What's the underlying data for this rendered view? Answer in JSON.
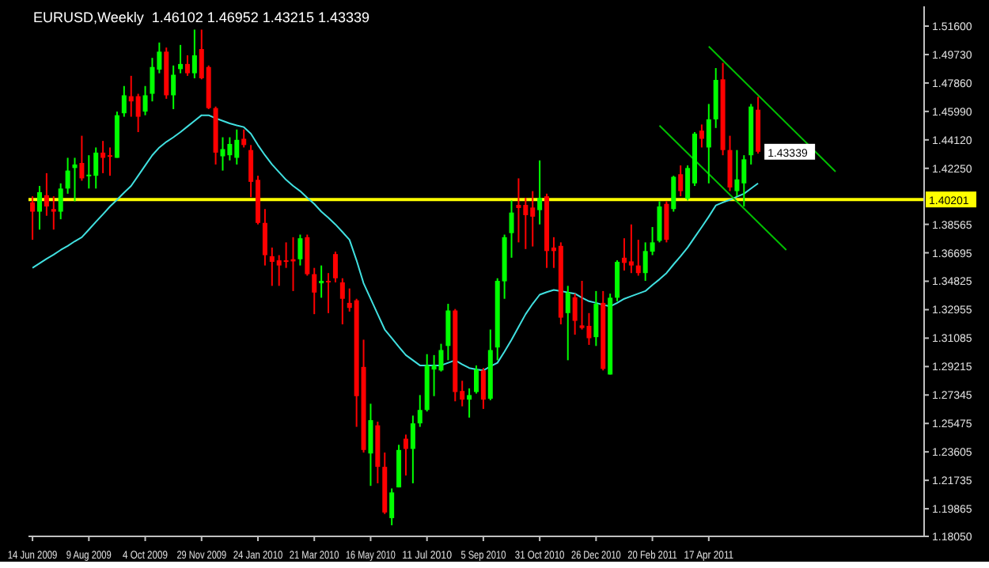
{
  "chart_data": {
    "type": "candlestick",
    "title": "EURUSD,Weekly  1.46102 1.46952 1.43215 1.43339",
    "x": [
      "2009-06-14",
      "2009-06-21",
      "2009-06-28",
      "2009-07-05",
      "2009-07-12",
      "2009-07-19",
      "2009-07-26",
      "2009-08-02",
      "2009-08-09",
      "2009-08-16",
      "2009-08-23",
      "2009-08-30",
      "2009-09-06",
      "2009-09-13",
      "2009-09-20",
      "2009-09-27",
      "2009-10-04",
      "2009-10-11",
      "2009-10-18",
      "2009-10-25",
      "2009-11-01",
      "2009-11-08",
      "2009-11-15",
      "2009-11-22",
      "2009-11-29",
      "2009-12-06",
      "2009-12-13",
      "2009-12-20",
      "2009-12-27",
      "2010-01-03",
      "2010-01-10",
      "2010-01-17",
      "2010-01-24",
      "2010-01-31",
      "2010-02-07",
      "2010-02-14",
      "2010-02-21",
      "2010-02-28",
      "2010-03-07",
      "2010-03-14",
      "2010-03-21",
      "2010-03-28",
      "2010-04-04",
      "2010-04-11",
      "2010-04-18",
      "2010-04-25",
      "2010-05-02",
      "2010-05-09",
      "2010-05-16",
      "2010-05-23",
      "2010-05-30",
      "2010-06-06",
      "2010-06-13",
      "2010-06-20",
      "2010-06-27",
      "2010-07-04",
      "2010-07-11",
      "2010-07-18",
      "2010-07-25",
      "2010-08-01",
      "2010-08-08",
      "2010-08-15",
      "2010-08-22",
      "2010-08-29",
      "2010-09-05",
      "2010-09-12",
      "2010-09-19",
      "2010-09-26",
      "2010-10-03",
      "2010-10-10",
      "2010-10-17",
      "2010-10-24",
      "2010-10-31",
      "2010-11-07",
      "2010-11-14",
      "2010-11-21",
      "2010-11-28",
      "2010-12-05",
      "2010-12-12",
      "2010-12-19",
      "2010-12-26",
      "2011-01-02",
      "2011-01-09",
      "2011-01-16",
      "2011-01-23",
      "2011-01-30",
      "2011-02-06",
      "2011-02-13",
      "2011-02-20",
      "2011-02-27",
      "2011-03-06",
      "2011-03-13",
      "2011-03-20",
      "2011-03-27",
      "2011-04-03",
      "2011-04-10",
      "2011-04-17",
      "2011-04-24",
      "2011-05-01",
      "2011-05-08",
      "2011-05-15",
      "2011-05-22",
      "2011-05-29",
      "2011-06-05"
    ],
    "series": [
      {
        "type": "candlestick",
        "ohlc": [
          [
            1.4001,
            1.4041,
            1.3755,
            1.394
          ],
          [
            1.394,
            1.4109,
            1.3822,
            1.4068
          ],
          [
            1.4048,
            1.4193,
            1.3913,
            1.3974
          ],
          [
            1.3957,
            1.4041,
            1.3822,
            1.394
          ],
          [
            1.394,
            1.4126,
            1.389,
            1.4092
          ],
          [
            1.4092,
            1.4294,
            1.4058,
            1.421
          ],
          [
            1.4227,
            1.4294,
            1.4008,
            1.425
          ],
          [
            1.426,
            1.4439,
            1.4143,
            1.4159
          ],
          [
            1.4176,
            1.4311,
            1.4092,
            1.4183
          ],
          [
            1.4176,
            1.4362,
            1.4092,
            1.4328
          ],
          [
            1.4328,
            1.4405,
            1.4193,
            1.4294
          ],
          [
            1.4311,
            1.4362,
            1.4176,
            1.4301
          ],
          [
            1.4294,
            1.4598,
            1.4294,
            1.4574
          ],
          [
            1.4587,
            1.4766,
            1.4564,
            1.4705
          ],
          [
            1.4699,
            1.4833,
            1.4564,
            1.4665
          ],
          [
            1.4699,
            1.4715,
            1.4463,
            1.4564
          ],
          [
            1.4598,
            1.4766,
            1.4574,
            1.4705
          ],
          [
            1.4715,
            1.4951,
            1.4665,
            1.4891
          ],
          [
            1.4874,
            1.5052,
            1.485,
            1.4992
          ],
          [
            1.4992,
            1.5019,
            1.4682,
            1.4705
          ],
          [
            1.4705,
            1.4901,
            1.4614,
            1.484
          ],
          [
            1.4877,
            1.5036,
            1.485,
            1.4911
          ],
          [
            1.4911,
            1.4968,
            1.4833,
            1.485
          ],
          [
            1.485,
            1.5137,
            1.4817,
            1.4968
          ],
          [
            1.5009,
            1.5137,
            1.481,
            1.4817
          ],
          [
            1.4891,
            1.4901,
            1.4614,
            1.4621
          ],
          [
            1.4621,
            1.4631,
            1.425,
            1.4328
          ],
          [
            1.4304,
            1.4429,
            1.421,
            1.4351
          ],
          [
            1.4311,
            1.4429,
            1.4277,
            1.4385
          ],
          [
            1.4294,
            1.448,
            1.425,
            1.4412
          ],
          [
            1.4419,
            1.448,
            1.4362,
            1.4378
          ],
          [
            1.4345,
            1.4378,
            1.4035,
            1.4136
          ],
          [
            1.4149,
            1.4176,
            1.3856,
            1.3866
          ],
          [
            1.3866,
            1.3957,
            1.3586,
            1.3654
          ],
          [
            1.3647,
            1.3704,
            1.3452,
            1.361
          ],
          [
            1.362,
            1.3654,
            1.3452,
            1.3586
          ],
          [
            1.362,
            1.3738,
            1.357,
            1.3613
          ],
          [
            1.3627,
            1.3772,
            1.3418,
            1.3613
          ],
          [
            1.3627,
            1.3789,
            1.3586,
            1.3765
          ],
          [
            1.3772,
            1.3789,
            1.3519,
            1.3529
          ],
          [
            1.3529,
            1.357,
            1.3266,
            1.3408
          ],
          [
            1.3469,
            1.3586,
            1.3374,
            1.3485
          ],
          [
            1.3485,
            1.3536,
            1.3273,
            1.3475
          ],
          [
            1.3661,
            1.3677,
            1.3475,
            1.3502
          ],
          [
            1.3475,
            1.3502,
            1.3199,
            1.3367
          ],
          [
            1.334,
            1.3435,
            1.3283,
            1.3307
          ],
          [
            1.3357,
            1.3367,
            1.2525,
            1.2727
          ],
          [
            1.2919,
            1.3098,
            1.2356,
            1.2373
          ],
          [
            1.235,
            1.2677,
            1.2137,
            1.2569
          ],
          [
            1.2535,
            1.2559,
            1.2154,
            1.2262
          ],
          [
            1.2262,
            1.2356,
            1.1952,
            1.1962
          ],
          [
            1.1925,
            1.212,
            1.1878,
            1.2094
          ],
          [
            1.2127,
            1.2407,
            1.2127,
            1.2373
          ],
          [
            1.2447,
            1.2474,
            1.2205,
            1.238
          ],
          [
            1.238,
            1.2599,
            1.2154,
            1.2548
          ],
          [
            1.2548,
            1.2734,
            1.2525,
            1.2636
          ],
          [
            1.2636,
            1.3003,
            1.2626,
            1.2929
          ],
          [
            1.2902,
            1.2997,
            1.2727,
            1.2929
          ],
          [
            1.2896,
            1.3071,
            1.2889,
            1.303
          ],
          [
            1.3057,
            1.3334,
            1.2963,
            1.329
          ],
          [
            1.329,
            1.33,
            1.2693,
            1.2754
          ],
          [
            1.2761,
            1.2828,
            1.266,
            1.2704
          ],
          [
            1.2704,
            1.2778,
            1.2586,
            1.2734
          ],
          [
            1.2754,
            1.2929,
            1.2744,
            1.2902
          ],
          [
            1.2896,
            1.2912,
            1.2643,
            1.2704
          ],
          [
            1.271,
            1.3165,
            1.27,
            1.303
          ],
          [
            1.3047,
            1.3502,
            1.2963,
            1.3485
          ],
          [
            1.3482,
            1.3789,
            1.3367,
            1.3772
          ],
          [
            1.3799,
            1.4014,
            1.3637,
            1.3934
          ],
          [
            1.3984,
            1.4159,
            1.3738,
            1.3964
          ],
          [
            1.3984,
            1.4031,
            1.3694,
            1.3917
          ],
          [
            1.3967,
            1.4075,
            1.3711,
            1.3907
          ],
          [
            1.395,
            1.4277,
            1.3856,
            1.4031
          ],
          [
            1.4041,
            1.4058,
            1.357,
            1.3681
          ],
          [
            1.3704,
            1.3772,
            1.357,
            1.3681
          ],
          [
            1.3715,
            1.3738,
            1.3199,
            1.3243
          ],
          [
            1.3273,
            1.3452,
            1.2963,
            1.3408
          ],
          [
            1.3377,
            1.3401,
            1.3131,
            1.3222
          ],
          [
            1.3192,
            1.3485,
            1.3165,
            1.3175
          ],
          [
            1.3189,
            1.3273,
            1.3064,
            1.3108
          ],
          [
            1.3115,
            1.3418,
            1.3057,
            1.3334
          ],
          [
            1.334,
            1.3418,
            1.2896,
            1.2906
          ],
          [
            1.2869,
            1.3401,
            1.2869,
            1.3374
          ],
          [
            1.3374,
            1.362,
            1.3351,
            1.361
          ],
          [
            1.3637,
            1.3765,
            1.3553,
            1.3603
          ],
          [
            1.3613,
            1.3856,
            1.3536,
            1.3586
          ],
          [
            1.3586,
            1.3755,
            1.3519,
            1.3536
          ],
          [
            1.3536,
            1.3738,
            1.3485,
            1.3681
          ],
          [
            1.3677,
            1.3839,
            1.3654,
            1.3738
          ],
          [
            1.3748,
            1.4008,
            1.3738,
            1.3974
          ],
          [
            1.3991,
            1.4008,
            1.3738,
            1.3755
          ],
          [
            1.3957,
            1.4176,
            1.394,
            1.4169
          ],
          [
            1.4186,
            1.4244,
            1.4041,
            1.4075
          ],
          [
            1.4025,
            1.4244,
            1.4014,
            1.4227
          ],
          [
            1.4126,
            1.4463,
            1.4109,
            1.4453
          ],
          [
            1.4473,
            1.4513,
            1.4362,
            1.4419
          ],
          [
            1.4362,
            1.4648,
            1.4126,
            1.4547
          ],
          [
            1.4547,
            1.4884,
            1.449,
            1.4806
          ],
          [
            1.481,
            1.4918,
            1.4311,
            1.4345
          ],
          [
            1.4345,
            1.4439,
            1.4075,
            1.4099
          ],
          [
            1.4075,
            1.4345,
            1.4041,
            1.4152
          ],
          [
            1.4126,
            1.4311,
            1.3974,
            1.4284
          ],
          [
            1.4311,
            1.4648,
            1.425,
            1.4631
          ],
          [
            1.46102,
            1.46952,
            1.43215,
            1.43339
          ]
        ],
        "colors": [
          "#ff0000",
          "#00ff00",
          "#ff0000",
          "#ff0000",
          "#00ff00",
          "#00ff00",
          "#00ff00",
          "#ff0000",
          "#00ff00",
          "#00ff00",
          "#ff0000",
          "#ff0000",
          "#00ff00",
          "#00ff00",
          "#ff0000",
          "#ff0000",
          "#00ff00",
          "#00ff00",
          "#00ff00",
          "#ff0000",
          "#00ff00",
          "#00ff00",
          "#ff0000",
          "#00ff00",
          "#ff0000",
          "#ff0000",
          "#ff0000",
          "#00ff00",
          "#00ff00",
          "#00ff00",
          "#ff0000",
          "#ff0000",
          "#ff0000",
          "#ff0000",
          "#ff0000",
          "#ff0000",
          "#ff0000",
          "#ff0000",
          "#00ff00",
          "#ff0000",
          "#ff0000",
          "#00ff00",
          "#ff0000",
          "#ff0000",
          "#ff0000",
          "#ff0000",
          "#ff0000",
          "#ff0000",
          "#00ff00",
          "#ff0000",
          "#ff0000",
          "#00ff00",
          "#00ff00",
          "#ff0000",
          "#00ff00",
          "#00ff00",
          "#00ff00",
          "#00ff00",
          "#00ff00",
          "#00ff00",
          "#ff0000",
          "#ff0000",
          "#00ff00",
          "#00ff00",
          "#ff0000",
          "#00ff00",
          "#00ff00",
          "#00ff00",
          "#00ff00",
          "#ff0000",
          "#ff0000",
          "#ff0000",
          "#00ff00",
          "#ff0000",
          "#ff0000",
          "#ff0000",
          "#00ff00",
          "#ff0000",
          "#ff0000",
          "#ff0000",
          "#00ff00",
          "#ff0000",
          "#00ff00",
          "#00ff00",
          "#ff0000",
          "#ff0000",
          "#ff0000",
          "#00ff00",
          "#00ff00",
          "#00ff00",
          "#ff0000",
          "#00ff00",
          "#ff0000",
          "#00ff00",
          "#00ff00",
          "#ff0000",
          "#00ff00",
          "#00ff00",
          "#ff0000",
          "#ff0000",
          "#00ff00",
          "#00ff00",
          "#00ff00",
          "#ff0000"
        ]
      },
      {
        "type": "line",
        "color": "#40e0e0",
        "values": [
          1.357,
          1.36,
          1.363,
          1.3657,
          1.3688,
          1.3715,
          1.3745,
          1.3772,
          1.3822,
          1.3873,
          1.3923,
          1.3974,
          1.4018,
          1.4065,
          1.4109,
          1.4176,
          1.4244,
          1.4311,
          1.4362,
          1.4399,
          1.4429,
          1.4463,
          1.45,
          1.4537,
          1.4574,
          1.4574,
          1.4554,
          1.4537,
          1.452,
          1.4507,
          1.4496,
          1.4453,
          1.4378,
          1.4311,
          1.425,
          1.42,
          1.4149,
          1.4109,
          1.4075,
          1.4031,
          1.3991,
          1.394,
          1.39,
          1.3856,
          1.3806,
          1.3755,
          1.362,
          1.3469,
          1.3367,
          1.3266,
          1.3165,
          1.3108,
          1.3051,
          1.2997,
          1.2963,
          1.2929,
          1.2929,
          1.2929,
          1.2929,
          1.2946,
          1.2963,
          1.2936,
          1.2912,
          1.2902,
          1.2896,
          1.2923,
          1.2946,
          1.302,
          1.3098,
          1.3182,
          1.3266,
          1.3334,
          1.3394,
          1.3411,
          1.3425,
          1.3418,
          1.3408,
          1.3401,
          1.3374,
          1.3351,
          1.334,
          1.3327,
          1.3317,
          1.334,
          1.3367,
          1.3384,
          1.3401,
          1.3418,
          1.3458,
          1.3495,
          1.3536,
          1.3593,
          1.3647,
          1.3704,
          1.3772,
          1.3839,
          1.3907,
          1.3981,
          1.4001,
          1.4018,
          1.4038,
          1.4058,
          1.4092,
          1.4126
        ]
      },
      {
        "type": "line",
        "color": "#00c000",
        "x": [
          "2011-04-17",
          "2011-08-21"
        ],
        "values": [
          1.5026,
          1.4203
        ]
      },
      {
        "type": "line",
        "color": "#00c000",
        "x": [
          "2011-02-27",
          "2011-07-03"
        ],
        "values": [
          1.4506,
          1.3688
        ]
      }
    ],
    "xlim": [
      "2009-06-10",
      "2011-11-17"
    ],
    "xticks": [
      {
        "value": "2009-06-14",
        "label": "14 Jun 2009"
      },
      {
        "value": "2009-08-09",
        "label": "9 Aug 2009"
      },
      {
        "value": "2009-10-04",
        "label": "4 Oct 2009"
      },
      {
        "value": "2009-11-29",
        "label": "29 Nov 2009"
      },
      {
        "value": "2010-01-24",
        "label": "24 Jan 2010"
      },
      {
        "value": "2010-03-21",
        "label": "21 Mar 2010"
      },
      {
        "value": "2010-05-16",
        "label": "16 May 2010"
      },
      {
        "value": "2010-07-11",
        "label": "11 Jul 2010"
      },
      {
        "value": "2010-09-05",
        "label": "5 Sep 2010"
      },
      {
        "value": "2010-10-31",
        "label": "31 Oct 2010"
      },
      {
        "value": "2010-12-26",
        "label": "26 Dec 2010"
      },
      {
        "value": "2011-02-20",
        "label": "20 Feb 2011"
      },
      {
        "value": "2011-04-17",
        "label": "17 Apr 2011"
      }
    ],
    "ylim": [
      1.1805,
      1.529
    ],
    "yticks": [
      {
        "value": 1.516,
        "label": "1.51600"
      },
      {
        "value": 1.4973,
        "label": "1.49730"
      },
      {
        "value": 1.4786,
        "label": "1.47860"
      },
      {
        "value": 1.4599,
        "label": "1.45990"
      },
      {
        "value": 1.4412,
        "label": "1.44120"
      },
      {
        "value": 1.4225,
        "label": "1.42250"
      },
      1.38565,
      1.36695,
      1.34825,
      1.32955,
      1.31085,
      1.29215,
      1.27345,
      1.25475,
      1.23605,
      1.21735,
      1.19865,
      {
        "value": 1.1805,
        "label": "1.18050"
      }
    ],
    "ref_lines": [
      {
        "axis": "y",
        "value": 1.40201,
        "label": "1.40201",
        "color": "#ffff00"
      }
    ],
    "annotations": [
      {
        "text": "1.43339",
        "x": "2011-06-05",
        "y": 1.43339
      }
    ]
  }
}
